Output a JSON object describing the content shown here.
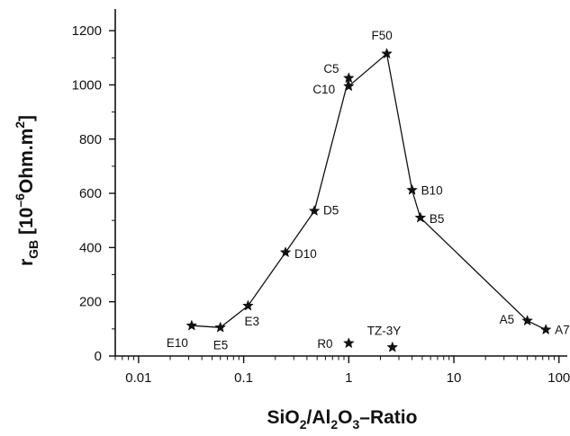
{
  "chart_data": {
    "type": "scatter",
    "x_scale": "log",
    "xlabel": {
      "main": "SiO",
      "sub1": "2",
      "mid": "/Al",
      "sub2": "2",
      "mid2": "O",
      "sub3": "3",
      "tail": "–Ratio"
    },
    "ylabel": {
      "main": "r",
      "sub": "GB",
      "unit_open": " [10",
      "unit_sup": "–6",
      "unit_mid": "Ohm.m",
      "unit_sup2": "2",
      "unit_close": "]"
    },
    "xlim": [
      0.006,
      120
    ],
    "ylim": [
      0,
      1280
    ],
    "x_ticks": [
      0.01,
      0.1,
      1,
      10,
      100
    ],
    "x_tick_labels": [
      "0.01",
      "0.1",
      "1",
      "10",
      "100"
    ],
    "y_ticks": [
      0,
      200,
      400,
      600,
      800,
      1000,
      1200
    ],
    "y_tick_labels": [
      "0",
      "200",
      "400",
      "600",
      "800",
      "1000",
      "1200"
    ],
    "grid": false,
    "marker": "star",
    "connected_series": {
      "points": [
        {
          "label": "E10",
          "x": 0.032,
          "y": 112
        },
        {
          "label": "E5",
          "x": 0.06,
          "y": 105
        },
        {
          "label": "E3",
          "x": 0.11,
          "y": 185
        },
        {
          "label": "D10",
          "x": 0.25,
          "y": 382
        },
        {
          "label": "D5",
          "x": 0.47,
          "y": 535
        },
        {
          "label": "C5",
          "x": 1.0,
          "y": 1025
        },
        {
          "label": "C10",
          "x": 1.0,
          "y": 995
        },
        {
          "label": "F50",
          "x": 2.3,
          "y": 1115
        },
        {
          "label": "B10",
          "x": 4.0,
          "y": 612
        },
        {
          "label": "B5",
          "x": 4.8,
          "y": 510
        },
        {
          "label": "A5",
          "x": 50,
          "y": 130
        },
        {
          "label": "A7",
          "x": 75,
          "y": 97
        }
      ]
    },
    "isolated_points": [
      {
        "label": "R0",
        "x": 1.0,
        "y": 47
      },
      {
        "label": "TZ-3Y",
        "x": 2.6,
        "y": 32
      }
    ]
  }
}
